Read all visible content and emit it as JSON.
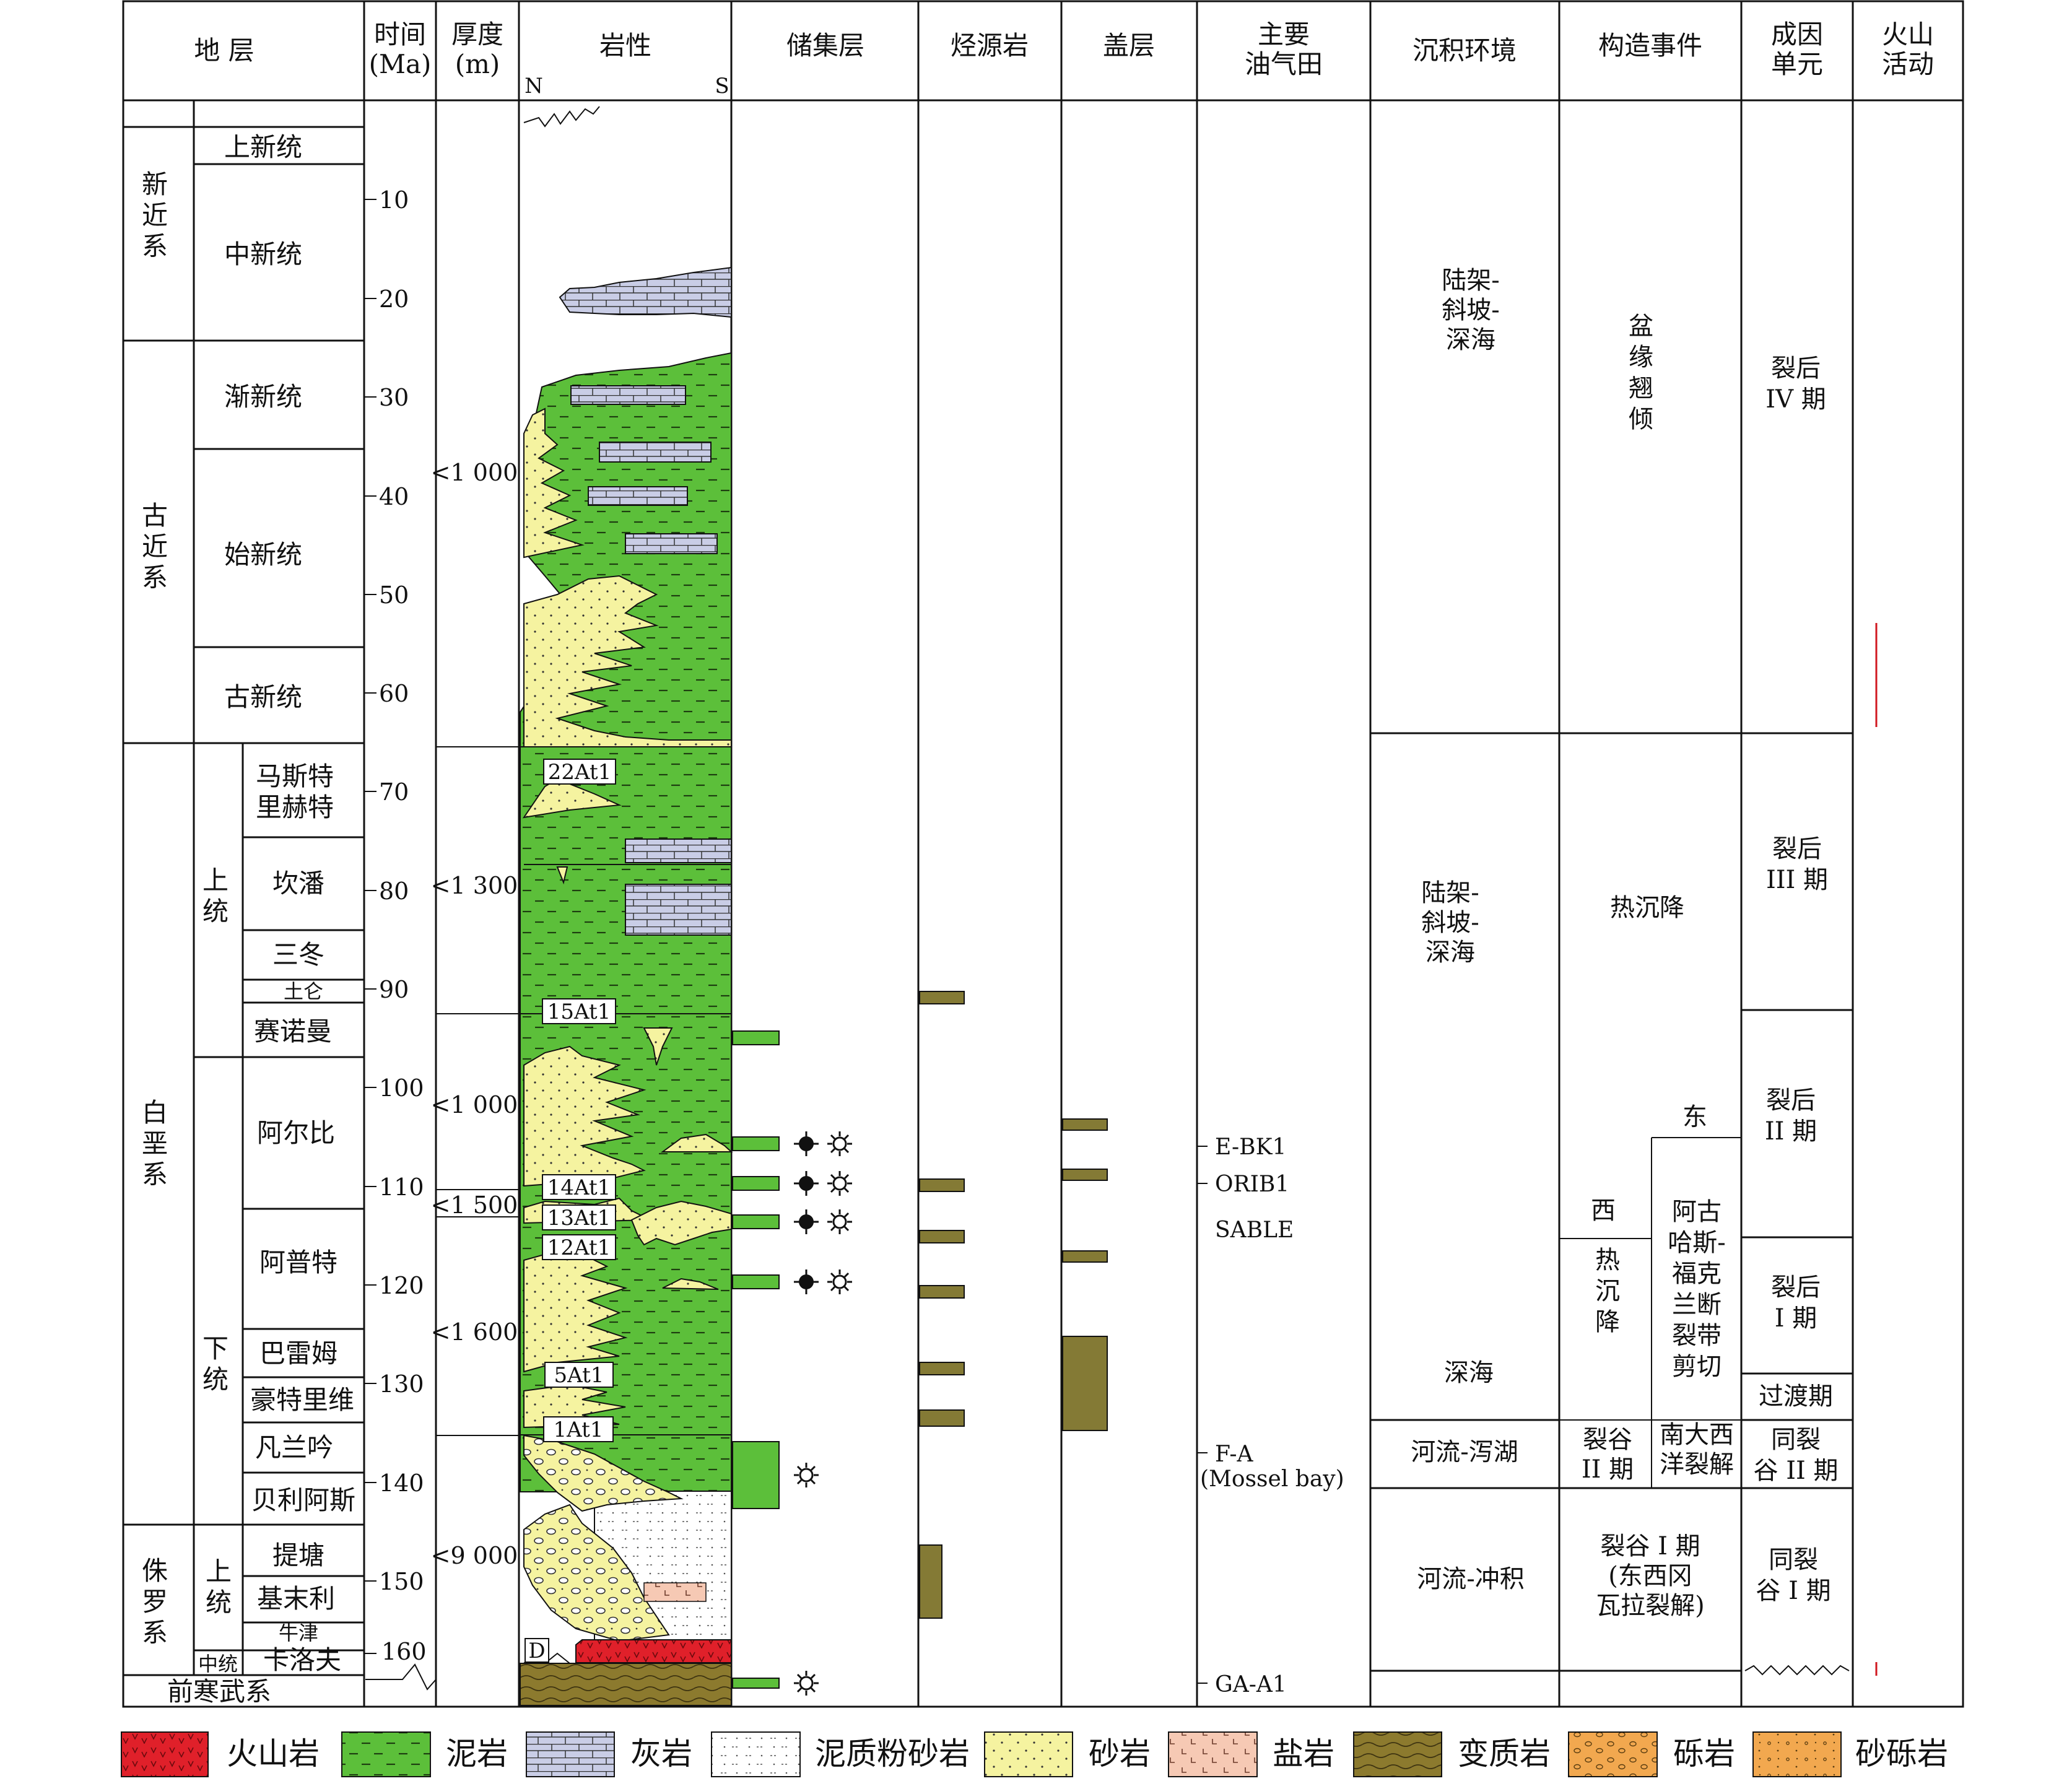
{
  "header": {
    "strata": "地 层",
    "time_l1": "时间",
    "time_l2": "(Ma)",
    "thick_l1": "厚度",
    "thick_l2": "(m)",
    "lithology": "岩性",
    "north": "N",
    "south": "S",
    "reservoir": "储集层",
    "source": "烃源岩",
    "seal": "盖层",
    "fields_l1": "主要",
    "fields_l2": "油气田",
    "environment": "沉积环境",
    "tectonic": "构造事件",
    "unit_l1": "成因",
    "unit_l2": "单元",
    "volcanic_l1": "火山",
    "volcanic_l2": "活动"
  },
  "systems": {
    "neogene": [
      "新",
      "近",
      "系"
    ],
    "paleogene": [
      "古",
      "近",
      "系"
    ],
    "cretaceous": [
      "白",
      "垩",
      "系"
    ],
    "jurassic": [
      "侏",
      "罗",
      "系"
    ],
    "precambrian": "前寒武系"
  },
  "series": {
    "pliocene": "上新统",
    "miocene": "中新统",
    "oligocene": "渐新统",
    "eocene": "始新统",
    "paleocene": "古新统",
    "k_upper": [
      "上",
      "统"
    ],
    "k_lower": [
      "下",
      "统"
    ],
    "j_upper": [
      "上",
      "统"
    ],
    "j_middle": "中统"
  },
  "stages": {
    "maastrichtian_l1": "马斯特",
    "maastrichtian_l2": "里赫特",
    "campanian": "坎潘",
    "santonian": "三冬",
    "coniacian": "土仑",
    "cenomanian": "赛诺曼",
    "albian": "阿尔比",
    "aptian": "阿普特",
    "barremian": "巴雷姆",
    "hauterivian": "豪特里维",
    "valanginian": "凡兰吟",
    "berriasian": "贝利阿斯",
    "tithonian": "提塘",
    "kimmeridgian": "基末利",
    "oxfordian": "牛津",
    "callovian": "卡洛夫"
  },
  "time_ticks": [
    "10",
    "20",
    "30",
    "40",
    "50",
    "60",
    "70",
    "80",
    "90",
    "100",
    "110",
    "120",
    "130",
    "140",
    "150",
    "160"
  ],
  "thickness": {
    "t1": "<1 000",
    "t2": "<1 300",
    "t3": "<1 000",
    "t4": "<1 500",
    "t5": "<1 600",
    "t6": "<9 000"
  },
  "seq_labels": {
    "s22": "22At1",
    "s15": "15At1",
    "s14": "14At1",
    "s13": "13At1",
    "s12": "12At1",
    "s5": "5At1",
    "s1": "1At1",
    "d": "D"
  },
  "oil_fields": {
    "ebk1": "E-BK1",
    "orib1": "ORIB1",
    "sable": "SABLE",
    "fa": "F-A",
    "fa_sub": "(Mossel bay)",
    "gaa1": "GA-A1"
  },
  "environment": {
    "e1": [
      "陆架-",
      "斜坡-",
      "深海"
    ],
    "e2": [
      "陆架-",
      "斜坡-",
      "深海"
    ],
    "e3": "深海",
    "e4": "河流-泻湖",
    "e5": "河流-冲积"
  },
  "tectonic": {
    "t1": [
      "盆",
      "缘",
      "翘",
      "倾"
    ],
    "t2": "热沉降",
    "east": "东",
    "west": "西",
    "t3": [
      "热",
      "沉",
      "降"
    ],
    "t4": [
      "阿古",
      "哈斯-",
      "福克",
      "兰断",
      "裂带",
      "剪切"
    ],
    "t5": [
      "裂谷",
      "II 期"
    ],
    "t6": [
      "南大西",
      "洋裂解"
    ],
    "t7": [
      "裂谷 I 期",
      "(东西冈",
      "瓦拉裂解)"
    ]
  },
  "units": {
    "u1": [
      "裂后",
      "IV 期"
    ],
    "u2": [
      "裂后",
      "III 期"
    ],
    "u3": [
      "裂后",
      "II 期"
    ],
    "u4": [
      "裂后",
      "I 期"
    ],
    "u5": "过渡期",
    "u6": [
      "同裂",
      "谷 II 期"
    ],
    "u7": [
      "同裂",
      "谷 I 期"
    ]
  },
  "legend": {
    "volcanic": "火山岩",
    "mudstone": "泥岩",
    "limestone": "灰岩",
    "silty": "泥质粉砂岩",
    "sandstone": "砂岩",
    "salt": "盐岩",
    "metamorphic": "变质岩",
    "conglomerate": "砾岩",
    "pebbly_sand": "砂砾岩"
  },
  "colors": {
    "mudstone": "#5cbf3a",
    "sandstone": "#f5f3a0",
    "limestone": "#c9cde6",
    "volcanic": "#e0202a",
    "salt": "#f6c9b4",
    "metamorphic": "#8c7a2e",
    "conglomerate": "#f2a84f",
    "pebbly_sand": "#f2a84f",
    "source_rock": "#847a35",
    "volcanic_line": "#d01820"
  },
  "icons": {
    "oil": "oil-drop-icon",
    "gas": "gas-star-icon"
  }
}
